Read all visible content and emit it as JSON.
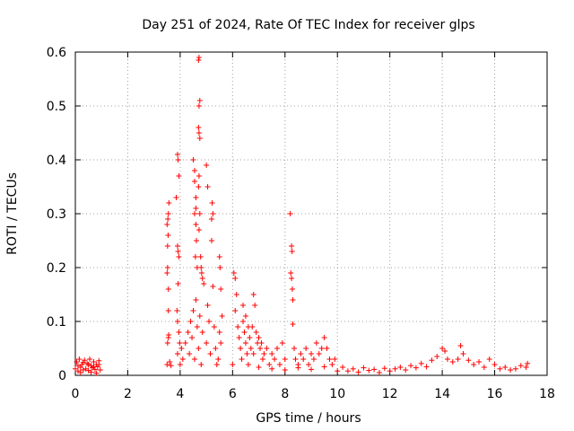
{
  "chart_data": {
    "type": "scatter",
    "title": "Day 251 of 2024, Rate Of TEC Index for receiver glps",
    "xlabel": "GPS time / hours",
    "ylabel": "ROTI / TECUs",
    "xlim": [
      0,
      18
    ],
    "ylim": [
      0,
      0.6
    ],
    "xticks": [
      0,
      2,
      4,
      6,
      8,
      10,
      12,
      14,
      16,
      18
    ],
    "xtick_labels": [
      "0",
      "2",
      "4",
      "6",
      "8",
      "10",
      "12",
      "14",
      "16",
      "18"
    ],
    "yticks": [
      0,
      0.1,
      0.2,
      0.3,
      0.4,
      0.5,
      0.6
    ],
    "ytick_labels": [
      "0",
      "0.1",
      "0.2",
      "0.3",
      "0.4",
      "0.5",
      "0.6"
    ],
    "grid": true,
    "marker": "+",
    "marker_color": "#ff0000",
    "series": [
      {
        "name": "ROTI",
        "points": [
          [
            0.0,
            0.012
          ],
          [
            0.05,
            0.025
          ],
          [
            0.1,
            0.008
          ],
          [
            0.15,
            0.03
          ],
          [
            0.2,
            0.015
          ],
          [
            0.25,
            0.02
          ],
          [
            0.3,
            0.01
          ],
          [
            0.35,
            0.028
          ],
          [
            0.4,
            0.012
          ],
          [
            0.45,
            0.022
          ],
          [
            0.5,
            0.009
          ],
          [
            0.55,
            0.03
          ],
          [
            0.6,
            0.018
          ],
          [
            0.65,
            0.014
          ],
          [
            0.7,
            0.025
          ],
          [
            0.75,
            0.011
          ],
          [
            0.8,
            0.02
          ],
          [
            0.85,
            0.016
          ],
          [
            0.9,
            0.027
          ],
          [
            0.95,
            0.01
          ],
          [
            0.1,
            0.018
          ],
          [
            0.3,
            0.024
          ],
          [
            0.5,
            0.02
          ],
          [
            0.7,
            0.016
          ],
          [
            0.9,
            0.02
          ],
          [
            0.2,
            0.005
          ],
          [
            0.6,
            0.006
          ],
          [
            0.8,
            0.004
          ],
          [
            3.5,
            0.02
          ],
          [
            3.52,
            0.06
          ],
          [
            3.55,
            0.07
          ],
          [
            3.56,
            0.075
          ],
          [
            3.5,
            0.19
          ],
          [
            3.52,
            0.2
          ],
          [
            3.55,
            0.16
          ],
          [
            3.5,
            0.28
          ],
          [
            3.53,
            0.29
          ],
          [
            3.55,
            0.3
          ],
          [
            3.57,
            0.32
          ],
          [
            3.52,
            0.24
          ],
          [
            3.54,
            0.26
          ],
          [
            3.55,
            0.12
          ],
          [
            3.6,
            0.025
          ],
          [
            3.65,
            0.018
          ],
          [
            3.85,
            0.33
          ],
          [
            3.9,
            0.41
          ],
          [
            3.92,
            0.4
          ],
          [
            3.95,
            0.37
          ],
          [
            3.9,
            0.24
          ],
          [
            3.92,
            0.23
          ],
          [
            3.95,
            0.22
          ],
          [
            3.88,
            0.12
          ],
          [
            3.9,
            0.1
          ],
          [
            3.95,
            0.08
          ],
          [
            3.98,
            0.06
          ],
          [
            3.92,
            0.17
          ],
          [
            3.9,
            0.04
          ],
          [
            4.0,
            0.02
          ],
          [
            4.05,
            0.05
          ],
          [
            4.1,
            0.03
          ],
          [
            4.2,
            0.06
          ],
          [
            4.3,
            0.08
          ],
          [
            4.35,
            0.04
          ],
          [
            4.4,
            0.1
          ],
          [
            4.45,
            0.07
          ],
          [
            4.5,
            0.12
          ],
          [
            4.55,
            0.03
          ],
          [
            4.6,
            0.14
          ],
          [
            4.65,
            0.09
          ],
          [
            4.7,
            0.05
          ],
          [
            4.75,
            0.11
          ],
          [
            4.8,
            0.02
          ],
          [
            4.85,
            0.08
          ],
          [
            4.5,
            0.4
          ],
          [
            4.55,
            0.38
          ],
          [
            4.6,
            0.33
          ],
          [
            4.55,
            0.3
          ],
          [
            4.6,
            0.28
          ],
          [
            4.62,
            0.25
          ],
          [
            4.65,
            0.2
          ],
          [
            4.58,
            0.22
          ],
          [
            4.55,
            0.36
          ],
          [
            4.6,
            0.31
          ],
          [
            4.7,
            0.585
          ],
          [
            4.72,
            0.59
          ],
          [
            4.75,
            0.51
          ],
          [
            4.72,
            0.5
          ],
          [
            4.7,
            0.46
          ],
          [
            4.72,
            0.45
          ],
          [
            4.75,
            0.44
          ],
          [
            4.72,
            0.37
          ],
          [
            4.7,
            0.35
          ],
          [
            4.75,
            0.3
          ],
          [
            4.72,
            0.27
          ],
          [
            4.78,
            0.22
          ],
          [
            4.8,
            0.2
          ],
          [
            4.82,
            0.19
          ],
          [
            4.85,
            0.18
          ],
          [
            4.9,
            0.17
          ],
          [
            5.0,
            0.06
          ],
          [
            5.05,
            0.13
          ],
          [
            5.1,
            0.1
          ],
          [
            5.15,
            0.04
          ],
          [
            5.2,
            0.25
          ],
          [
            5.25,
            0.165
          ],
          [
            5.3,
            0.09
          ],
          [
            5.35,
            0.05
          ],
          [
            5.4,
            0.02
          ],
          [
            5.45,
            0.03
          ],
          [
            5.5,
            0.22
          ],
          [
            5.52,
            0.2
          ],
          [
            5.55,
            0.16
          ],
          [
            5.6,
            0.11
          ],
          [
            5.5,
            0.08
          ],
          [
            5.55,
            0.06
          ],
          [
            5.2,
            0.29
          ],
          [
            5.25,
            0.3
          ],
          [
            5.22,
            0.32
          ],
          [
            5.0,
            0.39
          ],
          [
            5.05,
            0.35
          ],
          [
            6.0,
            0.02
          ],
          [
            6.05,
            0.19
          ],
          [
            6.1,
            0.18
          ],
          [
            6.15,
            0.15
          ],
          [
            6.1,
            0.12
          ],
          [
            6.2,
            0.09
          ],
          [
            6.25,
            0.07
          ],
          [
            6.3,
            0.05
          ],
          [
            6.35,
            0.03
          ],
          [
            6.4,
            0.1
          ],
          [
            6.45,
            0.08
          ],
          [
            6.5,
            0.06
          ],
          [
            6.55,
            0.04
          ],
          [
            6.6,
            0.02
          ],
          [
            6.65,
            0.07
          ],
          [
            6.7,
            0.05
          ],
          [
            6.75,
            0.09
          ],
          [
            6.8,
            0.04
          ],
          [
            6.85,
            0.13
          ],
          [
            6.9,
            0.08
          ],
          [
            6.95,
            0.06
          ],
          [
            6.4,
            0.13
          ],
          [
            6.5,
            0.11
          ],
          [
            6.6,
            0.09
          ],
          [
            6.8,
            0.15
          ],
          [
            7.0,
            0.07
          ],
          [
            7.05,
            0.05
          ],
          [
            7.1,
            0.06
          ],
          [
            7.15,
            0.03
          ],
          [
            7.2,
            0.04
          ],
          [
            7.3,
            0.05
          ],
          [
            7.4,
            0.02
          ],
          [
            7.5,
            0.04
          ],
          [
            7.6,
            0.03
          ],
          [
            7.7,
            0.05
          ],
          [
            7.8,
            0.02
          ],
          [
            7.9,
            0.06
          ],
          [
            8.0,
            0.03
          ],
          [
            8.2,
            0.3
          ],
          [
            8.25,
            0.24
          ],
          [
            8.27,
            0.23
          ],
          [
            8.22,
            0.19
          ],
          [
            8.25,
            0.18
          ],
          [
            8.28,
            0.16
          ],
          [
            8.3,
            0.14
          ],
          [
            8.3,
            0.095
          ],
          [
            8.35,
            0.05
          ],
          [
            8.4,
            0.03
          ],
          [
            8.5,
            0.02
          ],
          [
            8.6,
            0.04
          ],
          [
            8.7,
            0.03
          ],
          [
            8.8,
            0.05
          ],
          [
            8.9,
            0.02
          ],
          [
            9.0,
            0.04
          ],
          [
            9.1,
            0.03
          ],
          [
            9.2,
            0.06
          ],
          [
            9.3,
            0.04
          ],
          [
            9.4,
            0.05
          ],
          [
            9.5,
            0.07
          ],
          [
            9.6,
            0.05
          ],
          [
            9.7,
            0.03
          ],
          [
            9.8,
            0.02
          ],
          [
            9.9,
            0.03
          ],
          [
            7.0,
            0.015
          ],
          [
            7.5,
            0.012
          ],
          [
            8.0,
            0.01
          ],
          [
            8.5,
            0.014
          ],
          [
            9.0,
            0.011
          ],
          [
            9.5,
            0.016
          ],
          [
            10.0,
            0.008
          ],
          [
            10.2,
            0.015
          ],
          [
            10.4,
            0.008
          ],
          [
            10.6,
            0.012
          ],
          [
            10.8,
            0.006
          ],
          [
            11.0,
            0.014
          ],
          [
            11.2,
            0.009
          ],
          [
            11.4,
            0.011
          ],
          [
            11.6,
            0.005
          ],
          [
            11.8,
            0.013
          ],
          [
            12.0,
            0.008
          ],
          [
            12.2,
            0.012
          ],
          [
            12.4,
            0.015
          ],
          [
            12.6,
            0.01
          ],
          [
            12.8,
            0.018
          ],
          [
            13.0,
            0.014
          ],
          [
            13.2,
            0.022
          ],
          [
            13.4,
            0.016
          ],
          [
            13.6,
            0.028
          ],
          [
            13.8,
            0.035
          ],
          [
            14.0,
            0.05
          ],
          [
            14.1,
            0.045
          ],
          [
            14.2,
            0.03
          ],
          [
            14.4,
            0.025
          ],
          [
            14.6,
            0.03
          ],
          [
            14.7,
            0.055
          ],
          [
            14.8,
            0.04
          ],
          [
            15.0,
            0.028
          ],
          [
            15.2,
            0.02
          ],
          [
            15.4,
            0.025
          ],
          [
            15.6,
            0.015
          ],
          [
            15.8,
            0.03
          ],
          [
            16.0,
            0.02
          ],
          [
            16.2,
            0.012
          ],
          [
            16.4,
            0.015
          ],
          [
            16.6,
            0.01
          ],
          [
            16.8,
            0.012
          ],
          [
            17.0,
            0.018
          ],
          [
            17.2,
            0.015
          ],
          [
            17.25,
            0.022
          ]
        ]
      }
    ]
  }
}
